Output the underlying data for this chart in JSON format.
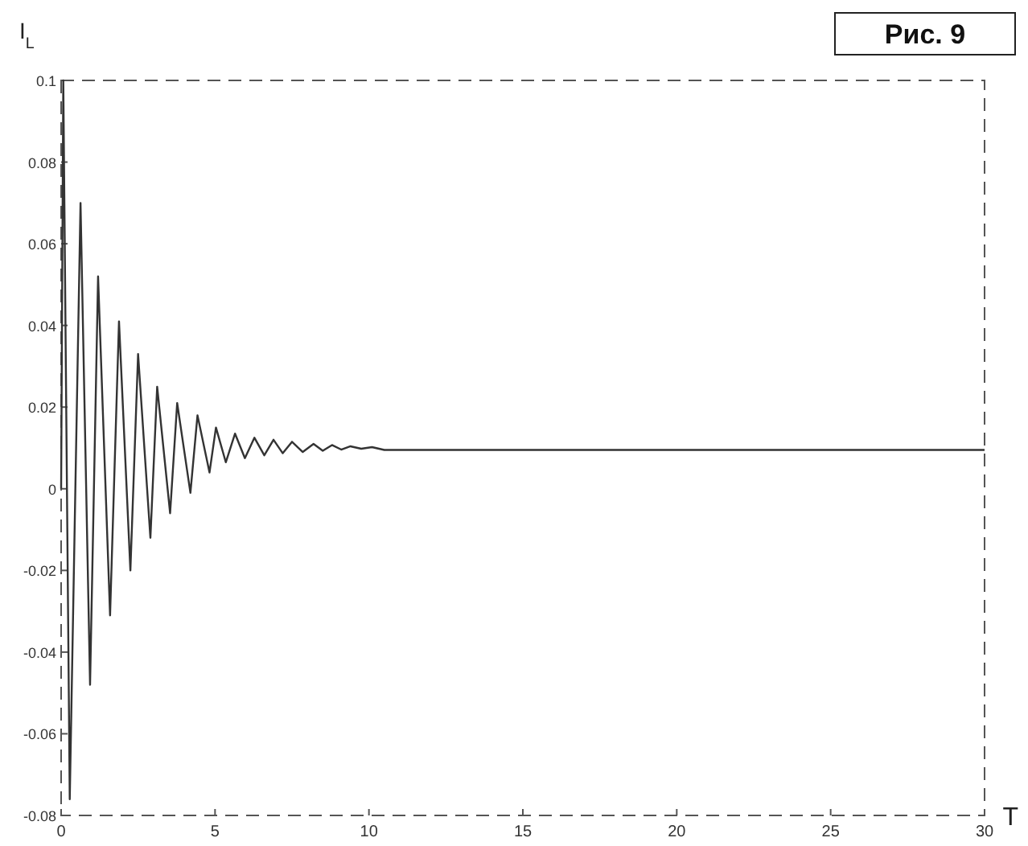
{
  "chart_data": {
    "type": "line",
    "xlabel": "T",
    "ylabel": "I$_{L}$",
    "annotations": [
      "Рис. 9"
    ],
    "xlim": [
      0,
      30
    ],
    "ylim": [
      -0.08,
      0.1
    ],
    "xticks": [
      0,
      5,
      10,
      15,
      20,
      25,
      30
    ],
    "yticks": [
      -0.08,
      -0.06,
      -0.04,
      -0.02,
      0,
      0.02,
      0.04,
      0.06,
      0.08,
      0.1
    ],
    "grid": false,
    "marker": "none",
    "line_style": "solid",
    "series": [
      {
        "color": "#333333",
        "x": [
          0,
          0.07,
          0.28,
          0.63,
          0.94,
          1.2,
          1.59,
          1.88,
          2.25,
          2.5,
          2.9,
          3.12,
          3.54,
          3.77,
          4.2,
          4.43,
          4.82,
          5.03,
          5.35,
          5.65,
          5.97,
          6.28,
          6.6,
          6.9,
          7.2,
          7.5,
          7.85,
          8.2,
          8.5,
          8.8,
          9.1,
          9.4,
          9.75,
          10.1,
          10.5,
          12,
          15,
          20,
          25,
          30
        ],
        "values": [
          0,
          0.1,
          -0.076,
          0.07,
          -0.048,
          0.052,
          -0.031,
          0.041,
          -0.02,
          0.033,
          -0.012,
          0.025,
          -0.006,
          0.021,
          -0.001,
          0.018,
          0.004,
          0.015,
          0.0065,
          0.0135,
          0.0075,
          0.0125,
          0.0082,
          0.012,
          0.0087,
          0.0115,
          0.009,
          0.011,
          0.0093,
          0.0107,
          0.0096,
          0.0104,
          0.0098,
          0.0102,
          0.0095,
          0.0095,
          0.0095,
          0.0095,
          0.0095,
          0.0095
        ]
      }
    ]
  }
}
